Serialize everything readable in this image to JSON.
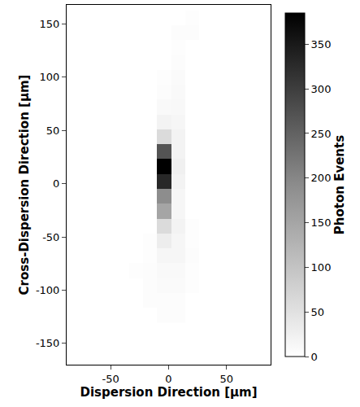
{
  "chart_data": {
    "type": "heatmap",
    "x_label": "Dispersion Direction [µm]",
    "y_label": "Cross-Dispersion Direction [µm]",
    "x": [
      -28,
      -16,
      -4,
      8,
      20,
      32
    ],
    "y": [
      -124,
      -110,
      -96,
      -82,
      -68,
      -54,
      -40,
      -26,
      -12,
      2,
      16,
      30,
      44,
      58,
      72,
      86,
      100,
      114,
      128,
      142,
      156
    ],
    "z": [
      [
        0,
        0,
        5,
        5,
        0,
        0
      ],
      [
        0,
        5,
        5,
        5,
        0,
        0
      ],
      [
        0,
        5,
        8,
        8,
        3,
        0
      ],
      [
        3,
        5,
        10,
        10,
        3,
        0
      ],
      [
        0,
        3,
        15,
        15,
        5,
        0
      ],
      [
        0,
        3,
        30,
        15,
        3,
        0
      ],
      [
        0,
        0,
        60,
        20,
        3,
        0
      ],
      [
        0,
        0,
        150,
        15,
        0,
        0
      ],
      [
        0,
        0,
        190,
        15,
        0,
        0
      ],
      [
        0,
        0,
        330,
        20,
        0,
        0
      ],
      [
        0,
        0,
        385,
        25,
        0,
        0
      ],
      [
        0,
        0,
        270,
        20,
        0,
        0
      ],
      [
        0,
        0,
        60,
        20,
        0,
        0
      ],
      [
        0,
        0,
        20,
        15,
        0,
        0
      ],
      [
        0,
        0,
        10,
        12,
        0,
        0
      ],
      [
        0,
        0,
        5,
        10,
        0,
        0
      ],
      [
        0,
        0,
        3,
        8,
        0,
        0
      ],
      [
        0,
        0,
        0,
        5,
        0,
        0
      ],
      [
        0,
        0,
        0,
        3,
        0,
        0
      ],
      [
        0,
        0,
        0,
        5,
        5,
        0
      ],
      [
        0,
        0,
        0,
        0,
        3,
        0
      ]
    ],
    "xlim": [
      -88,
      88
    ],
    "ylim": [
      -170,
      168
    ],
    "xticks": [
      -50,
      0,
      50
    ],
    "yticks": [
      -150,
      -100,
      -50,
      0,
      50,
      100,
      150
    ],
    "colorbar": {
      "title": "Photon Events",
      "range": [
        0,
        385
      ],
      "ticks": [
        0,
        50,
        100,
        150,
        200,
        250,
        300,
        350
      ]
    },
    "grid": false
  }
}
